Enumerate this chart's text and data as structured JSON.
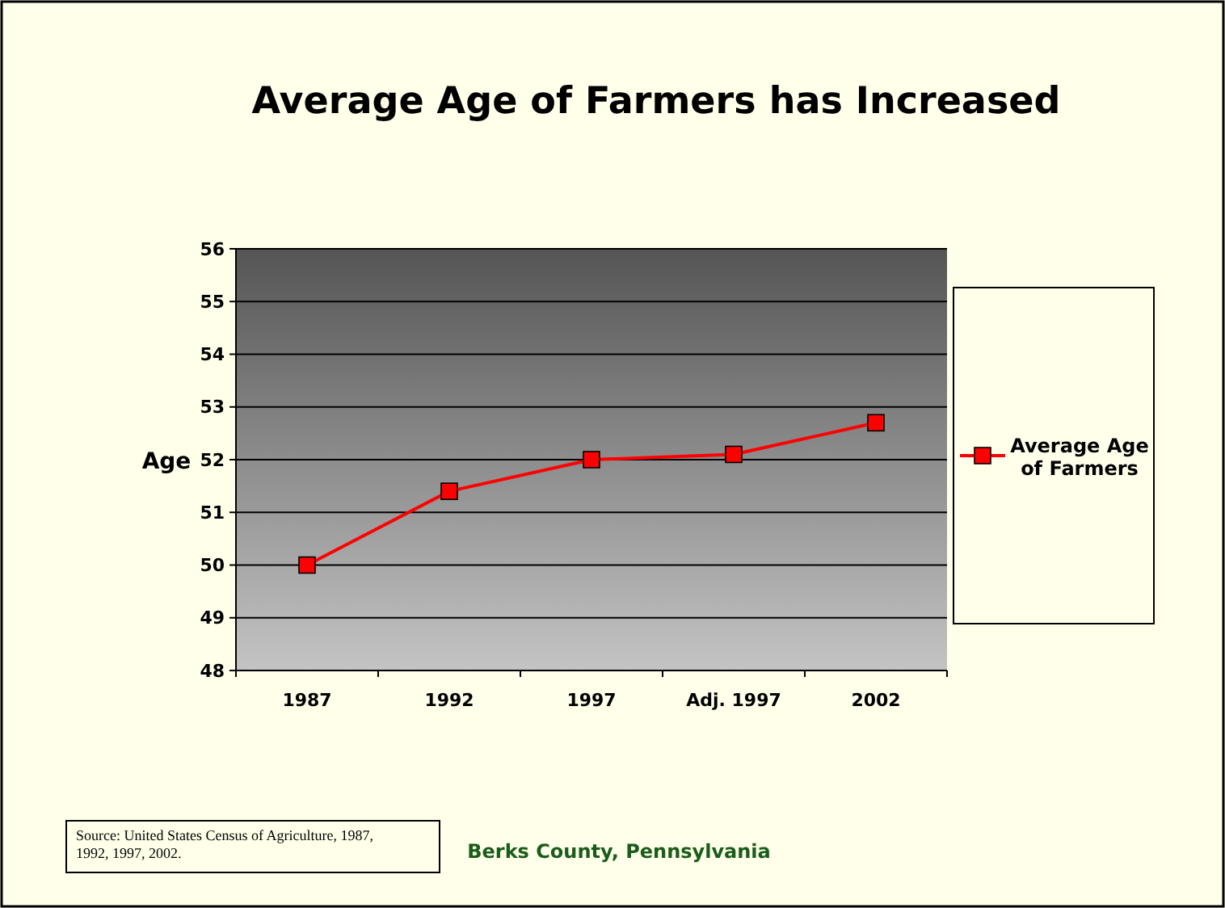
{
  "chart_data": {
    "type": "line",
    "title": "Average Age of Farmers has Increased",
    "ylabel": "Age",
    "categories": [
      "1987",
      "1992",
      "1997",
      "Adj. 1997",
      "2002"
    ],
    "series": [
      {
        "name": "Average Age of Farmers",
        "color": "#ff0000",
        "values": [
          50,
          51.4,
          52,
          52.1,
          52.7
        ]
      }
    ],
    "ylim": [
      48,
      56
    ],
    "yticks": [
      48,
      49,
      50,
      51,
      52,
      53,
      54,
      55,
      56
    ],
    "grid": "y",
    "legend": "right",
    "marker": "square",
    "annotations": [
      "Source: United States Census of Agriculture, 1987, 1992, 1997, 2002.",
      "Berks County, Pennsylvania"
    ]
  }
}
